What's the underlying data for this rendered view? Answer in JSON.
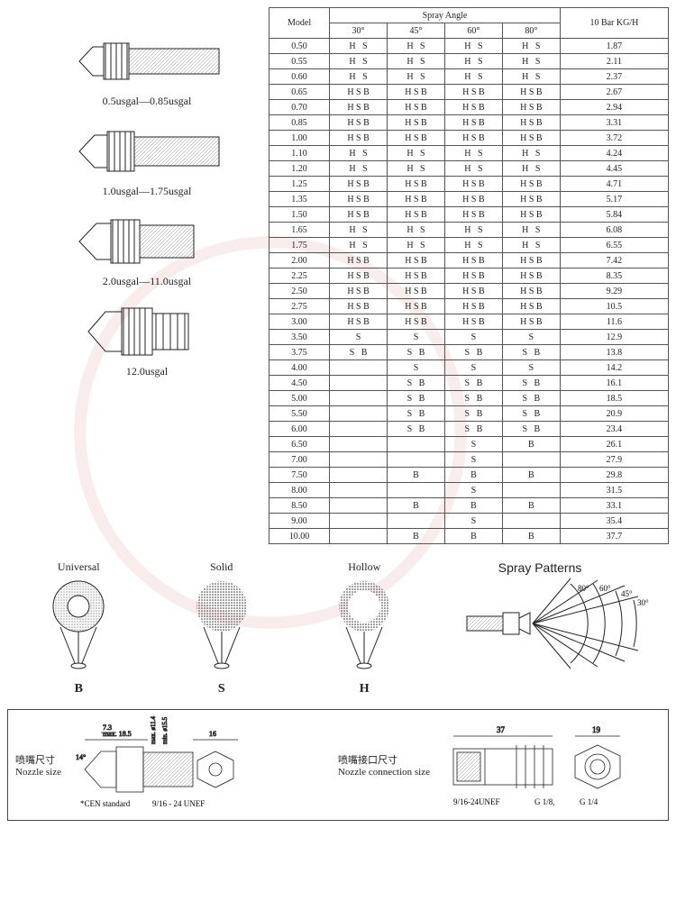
{
  "nozzles": [
    {
      "label": "0.5usgal—0.85usgal"
    },
    {
      "label": "1.0usgal—1.75usgal"
    },
    {
      "label": "2.0usgal—11.0usgal"
    },
    {
      "label": "12.0usgal"
    }
  ],
  "table": {
    "header_model": "Model",
    "header_spray_angle": "Spray Angle",
    "header_kgh": "10 Bar KG/H",
    "angle_cols": [
      "30°",
      "45°",
      "60°",
      "80°"
    ],
    "rows": [
      {
        "m": "0.50",
        "a": [
          "H   S",
          "H   S",
          "H   S",
          "H   S"
        ],
        "k": "1.87"
      },
      {
        "m": "0.55",
        "a": [
          "H   S",
          "H   S",
          "H   S",
          "H   S"
        ],
        "k": "2.11"
      },
      {
        "m": "0.60",
        "a": [
          "H   S",
          "H   S",
          "H   S",
          "H   S"
        ],
        "k": "2.37"
      },
      {
        "m": "0.65",
        "a": [
          "H S B",
          "H S B",
          "H S B",
          "H S B"
        ],
        "k": "2.67"
      },
      {
        "m": "0.70",
        "a": [
          "H S B",
          "H S B",
          "H S B",
          "H S B"
        ],
        "k": "2.94"
      },
      {
        "m": "0.85",
        "a": [
          "H S B",
          "H S B",
          "H S B",
          "H S B"
        ],
        "k": "3.31"
      },
      {
        "m": "1.00",
        "a": [
          "H S B",
          "H S B",
          "H S B",
          "H S B"
        ],
        "k": "3.72"
      },
      {
        "m": "1.10",
        "a": [
          "H   S",
          "H   S",
          "H   S",
          "H   S"
        ],
        "k": "4.24"
      },
      {
        "m": "1.20",
        "a": [
          "H   S",
          "H   S",
          "H   S",
          "H   S"
        ],
        "k": "4.45"
      },
      {
        "m": "1.25",
        "a": [
          "H S B",
          "H S B",
          "H S B",
          "H S B"
        ],
        "k": "4.71"
      },
      {
        "m": "1.35",
        "a": [
          "H S B",
          "H S B",
          "H S B",
          "H S B"
        ],
        "k": "5.17"
      },
      {
        "m": "1.50",
        "a": [
          "H S B",
          "H S B",
          "H S B",
          "H S B"
        ],
        "k": "5.84"
      },
      {
        "m": "1.65",
        "a": [
          "H   S",
          "H   S",
          "H   S",
          "H   S"
        ],
        "k": "6.08"
      },
      {
        "m": "1.75",
        "a": [
          "H   S",
          "H   S",
          "H   S",
          "H   S"
        ],
        "k": "6.55"
      },
      {
        "m": "2.00",
        "a": [
          "H S B",
          "H S B",
          "H S B",
          "H S B"
        ],
        "k": "7.42"
      },
      {
        "m": "2.25",
        "a": [
          "H S B",
          "H S B",
          "H S B",
          "H S B"
        ],
        "k": "8.35"
      },
      {
        "m": "2.50",
        "a": [
          "H S B",
          "H S B",
          "H S B",
          "H S B"
        ],
        "k": "9.29"
      },
      {
        "m": "2.75",
        "a": [
          "H S B",
          "H S B",
          "H S B",
          "H S B"
        ],
        "k": "10.5"
      },
      {
        "m": "3.00",
        "a": [
          "H S B",
          "H S B",
          "H S B",
          "H S B"
        ],
        "k": "11.6"
      },
      {
        "m": "3.50",
        "a": [
          "S",
          "S",
          "S",
          "S"
        ],
        "k": "12.9"
      },
      {
        "m": "3.75",
        "a": [
          "S   B",
          "S   B",
          "S   B",
          "S   B"
        ],
        "k": "13.8"
      },
      {
        "m": "4.00",
        "a": [
          "",
          "S",
          "S",
          "S"
        ],
        "k": "14.2"
      },
      {
        "m": "4.50",
        "a": [
          "",
          "S   B",
          "S   B",
          "S   B"
        ],
        "k": "16.1"
      },
      {
        "m": "5.00",
        "a": [
          "",
          "S   B",
          "S   B",
          "S   B"
        ],
        "k": "18.5"
      },
      {
        "m": "5.50",
        "a": [
          "",
          "S   B",
          "S   B",
          "S   B"
        ],
        "k": "20.9"
      },
      {
        "m": "6.00",
        "a": [
          "",
          "S   B",
          "S   B",
          "S   B"
        ],
        "k": "23.4"
      },
      {
        "m": "6.50",
        "a": [
          "",
          "",
          "S",
          "B"
        ],
        "k": "26.1"
      },
      {
        "m": "7.00",
        "a": [
          "",
          "",
          "S",
          ""
        ],
        "k": "27.9"
      },
      {
        "m": "7.50",
        "a": [
          "",
          "B",
          "B",
          "B"
        ],
        "k": "29.8"
      },
      {
        "m": "8.00",
        "a": [
          "",
          "",
          "S",
          ""
        ],
        "k": "31.5"
      },
      {
        "m": "8.50",
        "a": [
          "",
          "B",
          "B",
          "B"
        ],
        "k": "33.1"
      },
      {
        "m": "9.00",
        "a": [
          "",
          "",
          "S",
          ""
        ],
        "k": "35.4"
      },
      {
        "m": "10.00",
        "a": [
          "",
          "B",
          "B",
          "B"
        ],
        "k": "37.7"
      }
    ]
  },
  "patterns": {
    "universal": {
      "title": "Universal",
      "letter": "B"
    },
    "solid": {
      "title": "Solid",
      "letter": "S"
    },
    "hollow": {
      "title": "Hollow",
      "letter": "H"
    },
    "spray_title": "Spray Patterns",
    "angles": [
      "30°",
      "45°",
      "60°",
      "80°"
    ]
  },
  "dimensions": {
    "nozzle_size_cn": "喷嘴尺寸",
    "nozzle_size_en": "Nozzle size",
    "conn_size_cn": "喷嘴接口尺寸",
    "conn_size_en": "Nozzle connection size",
    "cen_note": "*CEN standard",
    "thread1": "9/16 - 24 UNEF",
    "thread2": "9/16-24UNEF",
    "g18": "G 1/8,",
    "g14": "G 1/4",
    "d14": "14°",
    "d185": "max. 18.5",
    "d73": "7.3",
    "d114": "max. ø11.4",
    "d155": "min. ø15.5",
    "d16": "16",
    "d37": "37",
    "d19": "19"
  },
  "colors": {
    "ink": "#222222",
    "border": "#555555",
    "hatch": "#888888",
    "wm": "#c02020"
  }
}
